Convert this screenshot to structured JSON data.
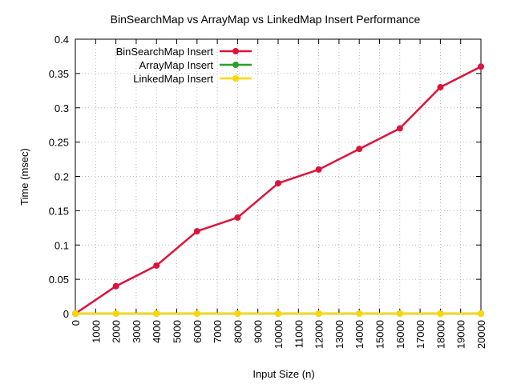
{
  "chart_data": {
    "type": "line",
    "title": "BinSearchMap vs ArrayMap vs LinkedMap Insert Performance",
    "xlabel": "Input Size (n)",
    "ylabel": "Time (msec)",
    "xlim": [
      0,
      20000
    ],
    "ylim": [
      0,
      0.4
    ],
    "xticks": [
      "0",
      "1000",
      "2000",
      "3000",
      "4000",
      "5000",
      "6000",
      "7000",
      "8000",
      "9000",
      "10000",
      "11000",
      "12000",
      "13000",
      "14000",
      "15000",
      "16000",
      "17000",
      "18000",
      "19000",
      "20000"
    ],
    "yticks": [
      "0",
      "0.05",
      "0.1",
      "0.15",
      "0.2",
      "0.25",
      "0.3",
      "0.35",
      "0.4"
    ],
    "grid": true,
    "legend_position": "top-left",
    "x": [
      0,
      2000,
      4000,
      6000,
      8000,
      10000,
      12000,
      14000,
      16000,
      18000,
      20000
    ],
    "series": [
      {
        "name": "BinSearchMap Insert",
        "color": "#dc143c",
        "values": [
          0,
          0.04,
          0.07,
          0.12,
          0.14,
          0.19,
          0.21,
          0.24,
          0.27,
          0.33,
          0.36
        ]
      },
      {
        "name": "ArrayMap Insert",
        "color": "#2ca02c",
        "values": [
          0,
          0,
          0,
          0,
          0,
          0,
          0,
          0,
          0,
          0,
          0
        ]
      },
      {
        "name": "LinkedMap Insert",
        "color": "#ffd700",
        "values": [
          0,
          0,
          0,
          0,
          0,
          0,
          0,
          0,
          0,
          0,
          0
        ]
      }
    ]
  }
}
